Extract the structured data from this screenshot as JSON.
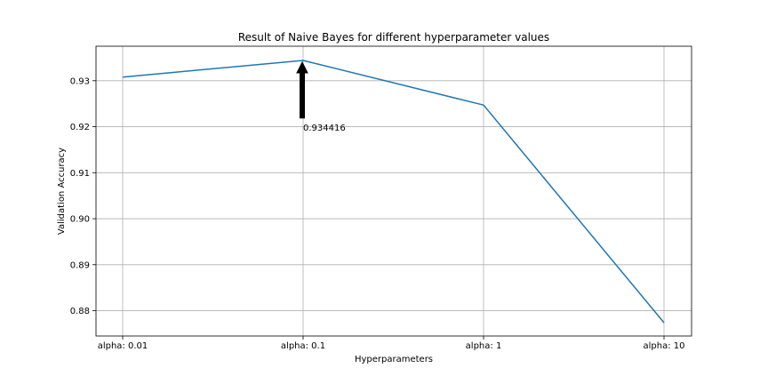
{
  "chart_data": {
    "type": "line",
    "title": "Result of Naive Bayes for different hyperparameter values",
    "xlabel": "Hyperparameters",
    "ylabel": "Validation Accuracy",
    "categories": [
      "alpha: 0.01",
      "alpha: 0.1",
      "alpha: 1",
      "alpha: 10"
    ],
    "series": [
      {
        "values": [
          0.9308,
          0.934416,
          0.9247,
          0.8774
        ],
        "color": "#1f77b4"
      }
    ],
    "ylim": [
      0.8745,
      0.9375
    ],
    "yticks": [
      0.88,
      0.89,
      0.9,
      0.91,
      0.92,
      0.93
    ],
    "ytick_labels": [
      "0.88",
      "0.89",
      "0.90",
      "0.91",
      "0.92",
      "0.93"
    ],
    "grid": true,
    "annotation": {
      "text": "0.934416",
      "category_index": 1,
      "value": 0.934416,
      "text_value": 0.9215,
      "arrow_color": "#000000"
    }
  }
}
